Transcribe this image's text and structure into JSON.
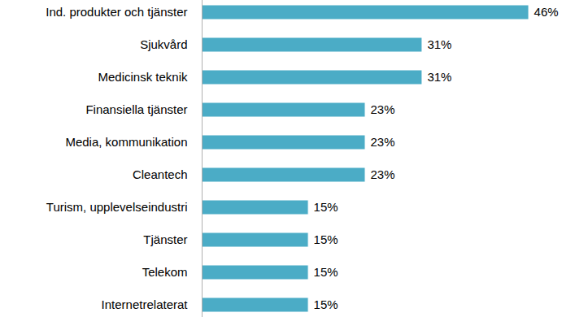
{
  "chart_data": {
    "type": "bar",
    "orientation": "horizontal",
    "categories": [
      "Ind. produkter och tjänster",
      "Sjukvård",
      "Medicinsk teknik",
      "Finansiella tjänster",
      "Media, kommunikation",
      "Cleantech",
      "Turism, upplevelseindustri",
      "Tjänster",
      "Telekom",
      "Internetrelaterat"
    ],
    "values": [
      46,
      31,
      31,
      23,
      23,
      23,
      15,
      15,
      15,
      15
    ],
    "value_labels": [
      "46%",
      "31%",
      "31%",
      "23%",
      "23%",
      "23%",
      "15%",
      "15%",
      "15%",
      "15%"
    ],
    "color": "#4bacc6",
    "xlim": [
      0,
      50
    ],
    "data_labels": true,
    "tick_labels": "y",
    "grid": false
  }
}
